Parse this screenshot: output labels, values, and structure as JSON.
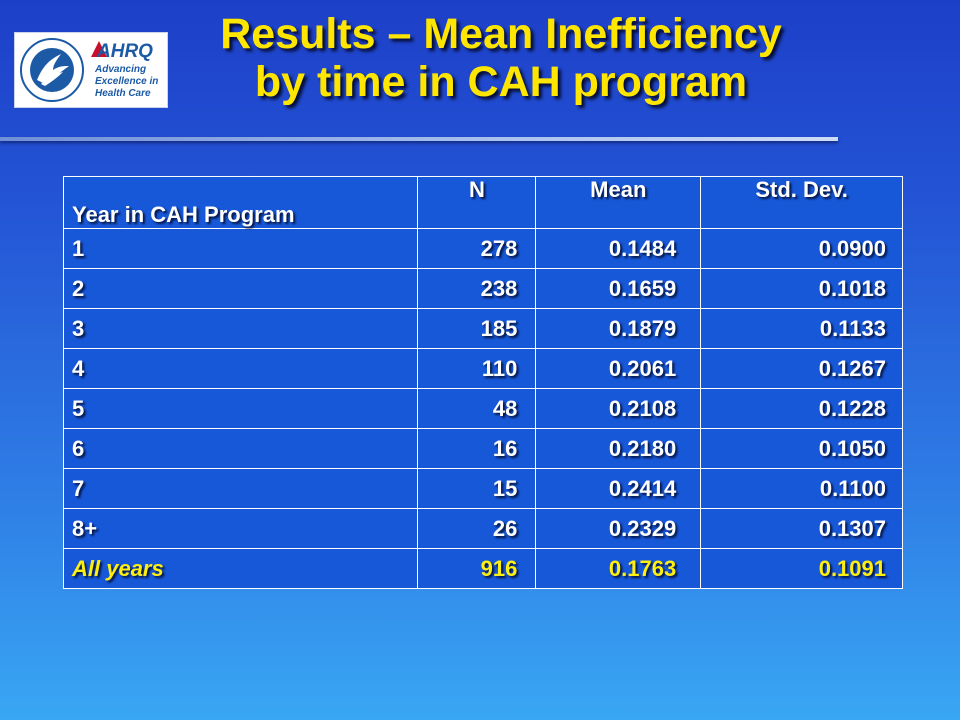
{
  "header": {
    "title_line1": "Results – Mean Inefficiency",
    "title_line2": "by time in CAH program",
    "logo_text": "AHRQ",
    "logo_tagline_1": "Advancing",
    "logo_tagline_2": "Excellence in",
    "logo_tagline_3": "Health Care"
  },
  "colors": {
    "title": "#ffe600",
    "background_top": "#1d3fc8",
    "background_bottom": "#39a7f3",
    "table_fill": "#1758d9",
    "total_row_text": "#ffef10",
    "ahrq_red": "#c8102e",
    "hhs_blue": "#1c5aa6"
  },
  "table": {
    "columns": [
      "Year in CAH Program",
      "N",
      "Mean",
      "Std. Dev."
    ],
    "rows": [
      [
        "1",
        "278",
        "0.1484",
        "0.0900"
      ],
      [
        "2",
        "238",
        "0.1659",
        "0.1018"
      ],
      [
        "3",
        "185",
        "0.1879",
        "0.1133"
      ],
      [
        "4",
        "110",
        "0.2061",
        "0.1267"
      ],
      [
        "5",
        "48",
        "0.2108",
        "0.1228"
      ],
      [
        "6",
        "16",
        "0.2180",
        "0.1050"
      ],
      [
        "7",
        "15",
        "0.2414",
        "0.1100"
      ],
      [
        "8+",
        "26",
        "0.2329",
        "0.1307"
      ]
    ],
    "total": [
      "All years",
      "916",
      "0.1763",
      "0.1091"
    ]
  }
}
